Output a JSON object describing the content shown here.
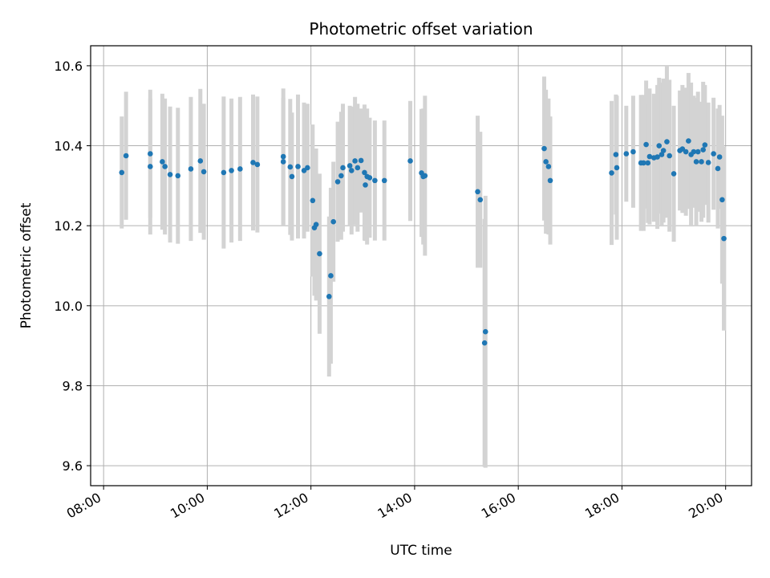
{
  "chart_data": {
    "type": "scatter",
    "title": "Photometric offset variation",
    "xlabel": "UTC time",
    "ylabel": "Photometric offset",
    "xlim": [
      "07:45",
      "20:30"
    ],
    "ylim": [
      9.55,
      10.65
    ],
    "x_ticks": [
      "08:00",
      "10:00",
      "12:00",
      "14:00",
      "16:00",
      "18:00",
      "20:00"
    ],
    "y_ticks": [
      "9.6",
      "9.8",
      "10.0",
      "10.2",
      "10.4",
      "10.6"
    ],
    "grid": true,
    "error_bar_color": "#d3d3d3",
    "marker_color": "#1f77b4",
    "series": [
      {
        "x": [
          "08:21",
          "08:26",
          "08:54",
          "08:54",
          "09:08",
          "09:11",
          "09:17",
          "09:26",
          "09:41",
          "09:52",
          "09:56",
          "10:19",
          "10:28",
          "10:38",
          "10:53",
          "10:58",
          "11:28",
          "11:28",
          "11:36",
          "11:38",
          "11:45",
          "11:52",
          "11:56",
          "12:02",
          "12:04",
          "12:06",
          "12:10",
          "12:21",
          "12:23",
          "12:26",
          "12:31",
          "12:35",
          "12:37",
          "12:45",
          "12:47",
          "12:51",
          "12:54",
          "12:58",
          "13:02",
          "13:03",
          "13:05",
          "13:08",
          "13:14",
          "13:25",
          "13:55",
          "14:08",
          "14:10",
          "14:12",
          "15:13",
          "15:16",
          "15:21",
          "15:22",
          "16:30",
          "16:32",
          "16:35",
          "16:37",
          "17:48",
          "17:53",
          "17:54",
          "18:05",
          "18:13",
          "18:22",
          "18:25",
          "18:28",
          "18:30",
          "18:32",
          "18:37",
          "18:41",
          "18:43",
          "18:46",
          "18:48",
          "18:52",
          "18:55",
          "19:00",
          "19:07",
          "19:10",
          "19:14",
          "19:17",
          "19:20",
          "19:23",
          "19:26",
          "19:28",
          "19:32",
          "19:34",
          "19:36",
          "19:40",
          "19:46",
          "19:51",
          "19:53",
          "19:56"
        ],
        "y": [
          10.333,
          10.375,
          10.38,
          10.348,
          10.36,
          10.348,
          10.328,
          10.325,
          10.342,
          10.362,
          10.335,
          10.333,
          10.338,
          10.342,
          10.358,
          10.353,
          10.373,
          10.36,
          10.347,
          10.323,
          10.348,
          10.338,
          10.345,
          10.263,
          10.195,
          10.203,
          10.13,
          10.023,
          10.075,
          10.21,
          10.31,
          10.325,
          10.345,
          10.35,
          10.338,
          10.362,
          10.345,
          10.363,
          10.333,
          10.302,
          10.323,
          10.32,
          10.313,
          10.313,
          10.362,
          10.332,
          10.323,
          10.325,
          10.285,
          10.265,
          9.907,
          9.935,
          10.393,
          10.36,
          10.348,
          10.313,
          10.332,
          10.378,
          10.345,
          10.38,
          10.385,
          10.357,
          10.357,
          10.403,
          10.357,
          10.373,
          10.37,
          10.372,
          10.4,
          10.378,
          10.388,
          10.41,
          10.375,
          10.33,
          10.388,
          10.392,
          10.385,
          10.412,
          10.378,
          10.385,
          10.36,
          10.385,
          10.36,
          10.39,
          10.402,
          10.358,
          10.38,
          10.343,
          10.372,
          10.265
        ],
        "err": [
          0.14,
          0.16,
          0.16,
          0.17,
          0.17,
          0.17,
          0.17,
          0.17,
          0.18,
          0.18,
          0.17,
          0.19,
          0.18,
          0.18,
          0.17,
          0.17,
          0.17,
          0.16,
          0.17,
          0.16,
          0.18,
          0.17,
          0.16,
          0.19,
          0.17,
          0.19,
          0.2,
          0.2,
          0.22,
          0.15,
          0.15,
          0.16,
          0.16,
          0.15,
          0.16,
          0.16,
          0.16,
          0.13,
          0.17,
          0.14,
          0.17,
          0.15,
          0.15,
          0.15,
          0.15,
          0.16,
          0.17,
          0.2,
          0.19,
          0.17,
          0.31,
          0.34,
          0.18,
          0.18,
          0.17,
          0.16,
          0.18,
          0.15,
          0.18,
          0.12,
          0.14,
          0.17,
          0.17,
          0.16,
          0.15,
          0.17,
          0.16,
          0.18,
          0.17,
          0.18,
          0.18,
          0.19,
          0.19,
          0.17,
          0.15,
          0.16,
          0.16,
          0.17,
          0.18,
          0.14,
          0.16,
          0.15,
          0.15,
          0.17,
          0.15,
          0.15,
          0.14,
          0.15,
          0.13,
          0.21
        ]
      },
      {
        "x": [
          "19:58"
        ],
        "y": [
          10.168
        ],
        "err": [
          0.23
        ]
      }
    ]
  }
}
